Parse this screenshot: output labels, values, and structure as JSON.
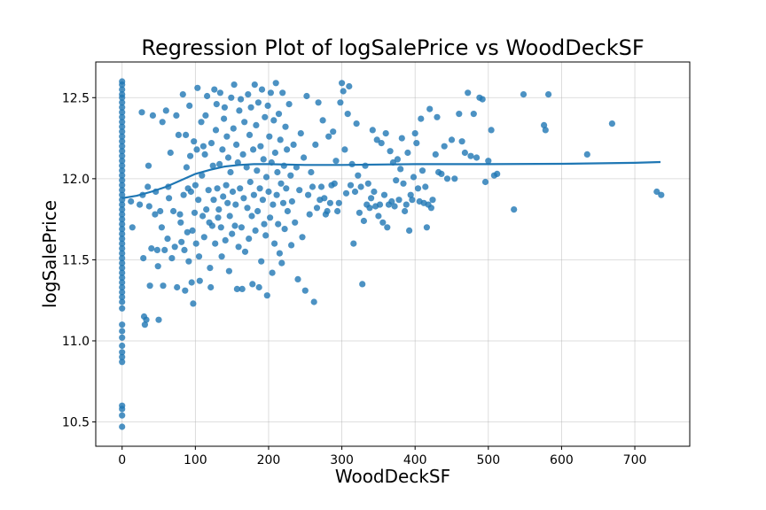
{
  "chart_data": {
    "type": "scatter",
    "title": "Regression Plot of logSalePrice vs WoodDeckSF",
    "xlabel": "WoodDeckSF",
    "ylabel": "logSalePrice",
    "xlim": [
      -36,
      775
    ],
    "ylim": [
      10.35,
      12.72
    ],
    "xticks": [
      0,
      100,
      200,
      300,
      400,
      500,
      600,
      700
    ],
    "yticks": [
      10.5,
      11.0,
      11.5,
      12.0,
      12.5
    ],
    "grid": true,
    "point_color": "#1f77b4",
    "line_color": "#1f77b4",
    "points": [
      [
        0,
        12.6
      ],
      [
        0,
        12.58
      ],
      [
        0,
        12.55
      ],
      [
        0,
        12.52
      ],
      [
        0,
        12.5
      ],
      [
        0,
        12.47
      ],
      [
        0,
        12.44
      ],
      [
        0,
        12.41
      ],
      [
        0,
        12.38
      ],
      [
        0,
        12.35
      ],
      [
        0,
        12.32
      ],
      [
        0,
        12.29
      ],
      [
        0,
        12.26
      ],
      [
        0,
        12.23
      ],
      [
        0,
        12.2
      ],
      [
        0,
        12.17
      ],
      [
        0,
        12.14
      ],
      [
        0,
        12.11
      ],
      [
        0,
        12.08
      ],
      [
        0,
        12.05
      ],
      [
        0,
        12.02
      ],
      [
        0,
        11.99
      ],
      [
        0,
        11.96
      ],
      [
        0,
        11.93
      ],
      [
        0,
        11.9
      ],
      [
        0,
        11.87
      ],
      [
        0,
        11.84
      ],
      [
        0,
        11.81
      ],
      [
        0,
        11.78
      ],
      [
        0,
        11.75
      ],
      [
        0,
        11.72
      ],
      [
        0,
        11.69
      ],
      [
        0,
        11.66
      ],
      [
        0,
        11.63
      ],
      [
        0,
        11.6
      ],
      [
        0,
        11.57
      ],
      [
        0,
        11.54
      ],
      [
        0,
        11.51
      ],
      [
        0,
        11.48
      ],
      [
        0,
        11.45
      ],
      [
        0,
        11.42
      ],
      [
        0,
        11.39
      ],
      [
        0,
        11.36
      ],
      [
        0,
        11.33
      ],
      [
        0,
        11.3
      ],
      [
        0,
        11.27
      ],
      [
        0,
        11.24
      ],
      [
        0,
        11.2
      ],
      [
        0,
        11.1
      ],
      [
        0,
        11.06
      ],
      [
        0,
        11.02
      ],
      [
        0,
        10.97
      ],
      [
        0,
        10.93
      ],
      [
        0,
        10.9
      ],
      [
        0,
        10.87
      ],
      [
        0,
        10.6
      ],
      [
        0,
        10.58
      ],
      [
        0,
        10.54
      ],
      [
        0,
        10.47
      ],
      [
        12,
        11.86
      ],
      [
        14,
        11.7
      ],
      [
        24,
        11.84
      ],
      [
        27,
        12.41
      ],
      [
        28,
        11.9
      ],
      [
        29,
        11.51
      ],
      [
        30,
        11.15
      ],
      [
        31,
        11.1
      ],
      [
        33,
        11.13
      ],
      [
        35,
        11.95
      ],
      [
        36,
        12.08
      ],
      [
        37,
        11.83
      ],
      [
        38,
        11.34
      ],
      [
        40,
        11.57
      ],
      [
        42,
        12.39
      ],
      [
        45,
        11.78
      ],
      [
        46,
        11.92
      ],
      [
        48,
        11.56
      ],
      [
        49,
        11.46
      ],
      [
        50,
        11.13
      ],
      [
        52,
        11.8
      ],
      [
        54,
        11.7
      ],
      [
        55,
        12.35
      ],
      [
        56,
        11.34
      ],
      [
        58,
        11.56
      ],
      [
        60,
        12.42
      ],
      [
        62,
        11.63
      ],
      [
        63,
        11.95
      ],
      [
        64,
        11.88
      ],
      [
        66,
        12.16
      ],
      [
        68,
        11.51
      ],
      [
        70,
        11.8
      ],
      [
        72,
        11.58
      ],
      [
        74,
        12.39
      ],
      [
        75,
        11.33
      ],
      [
        77,
        12.27
      ],
      [
        79,
        11.78
      ],
      [
        80,
        11.73
      ],
      [
        81,
        11.61
      ],
      [
        83,
        12.52
      ],
      [
        84,
        11.9
      ],
      [
        85,
        11.56
      ],
      [
        86,
        11.31
      ],
      [
        87,
        12.27
      ],
      [
        88,
        12.07
      ],
      [
        89,
        11.67
      ],
      [
        90,
        11.94
      ],
      [
        91,
        11.49
      ],
      [
        92,
        12.45
      ],
      [
        93,
        12.14
      ],
      [
        94,
        11.92
      ],
      [
        95,
        11.36
      ],
      [
        96,
        11.68
      ],
      [
        97,
        11.23
      ],
      [
        98,
        12.23
      ],
      [
        99,
        11.79
      ],
      [
        100,
        11.96
      ],
      [
        101,
        11.6
      ],
      [
        102,
        12.18
      ],
      [
        103,
        12.56
      ],
      [
        104,
        11.87
      ],
      [
        105,
        11.52
      ],
      [
        106,
        11.37
      ],
      [
        108,
        12.35
      ],
      [
        109,
        12.02
      ],
      [
        110,
        11.77
      ],
      [
        111,
        12.2
      ],
      [
        112,
        11.64
      ],
      [
        113,
        12.15
      ],
      [
        114,
        12.39
      ],
      [
        115,
        11.81
      ],
      [
        116,
        12.51
      ],
      [
        118,
        11.93
      ],
      [
        119,
        11.73
      ],
      [
        120,
        11.45
      ],
      [
        121,
        11.33
      ],
      [
        122,
        12.22
      ],
      [
        123,
        11.71
      ],
      [
        124,
        12.08
      ],
      [
        125,
        11.87
      ],
      [
        126,
        12.55
      ],
      [
        127,
        11.6
      ],
      [
        128,
        12.3
      ],
      [
        129,
        12.46
      ],
      [
        130,
        11.94
      ],
      [
        131,
        11.76
      ],
      [
        132,
        11.81
      ],
      [
        133,
        12.09
      ],
      [
        134,
        12.53
      ],
      [
        135,
        11.7
      ],
      [
        136,
        11.52
      ],
      [
        137,
        12.18
      ],
      [
        138,
        11.89
      ],
      [
        139,
        12.37
      ],
      [
        140,
        12.44
      ],
      [
        141,
        11.62
      ],
      [
        142,
        11.96
      ],
      [
        143,
        12.26
      ],
      [
        144,
        11.85
      ],
      [
        145,
        12.13
      ],
      [
        146,
        11.43
      ],
      [
        147,
        11.77
      ],
      [
        148,
        12.04
      ],
      [
        149,
        12.5
      ],
      [
        150,
        11.66
      ],
      [
        151,
        11.92
      ],
      [
        152,
        12.31
      ],
      [
        153,
        12.58
      ],
      [
        154,
        11.71
      ],
      [
        155,
        11.84
      ],
      [
        156,
        12.21
      ],
      [
        157,
        11.32
      ],
      [
        158,
        12.1
      ],
      [
        159,
        11.58
      ],
      [
        160,
        12.42
      ],
      [
        161,
        11.94
      ],
      [
        162,
        12.49
      ],
      [
        163,
        11.7
      ],
      [
        164,
        11.32
      ],
      [
        165,
        12.15
      ],
      [
        166,
        11.88
      ],
      [
        167,
        12.35
      ],
      [
        168,
        11.55
      ],
      [
        170,
        12.07
      ],
      [
        171,
        11.82
      ],
      [
        172,
        12.52
      ],
      [
        173,
        11.63
      ],
      [
        174,
        12.27
      ],
      [
        175,
        11.98
      ],
      [
        176,
        12.44
      ],
      [
        177,
        11.77
      ],
      [
        178,
        11.35
      ],
      [
        179,
        12.18
      ],
      [
        180,
        11.9
      ],
      [
        181,
        12.58
      ],
      [
        182,
        11.68
      ],
      [
        183,
        12.33
      ],
      [
        184,
        12.05
      ],
      [
        185,
        11.8
      ],
      [
        186,
        12.47
      ],
      [
        187,
        11.33
      ],
      [
        188,
        11.94
      ],
      [
        189,
        12.2
      ],
      [
        190,
        11.49
      ],
      [
        191,
        12.55
      ],
      [
        192,
        11.87
      ],
      [
        193,
        12.12
      ],
      [
        194,
        11.72
      ],
      [
        195,
        12.38
      ],
      [
        196,
        11.65
      ],
      [
        197,
        12.01
      ],
      [
        198,
        11.28
      ],
      [
        199,
        12.45
      ],
      [
        200,
        11.92
      ],
      [
        201,
        12.26
      ],
      [
        202,
        11.76
      ],
      [
        203,
        12.53
      ],
      [
        204,
        12.1
      ],
      [
        205,
        11.42
      ],
      [
        206,
        11.84
      ],
      [
        207,
        12.36
      ],
      [
        208,
        11.6
      ],
      [
        209,
        12.16
      ],
      [
        210,
        12.59
      ],
      [
        211,
        11.9
      ],
      [
        212,
        12.04
      ],
      [
        213,
        11.72
      ],
      [
        214,
        12.4
      ],
      [
        215,
        11.54
      ],
      [
        216,
        12.24
      ],
      [
        217,
        11.97
      ],
      [
        218,
        11.48
      ],
      [
        219,
        12.53
      ],
      [
        220,
        11.85
      ],
      [
        221,
        12.08
      ],
      [
        222,
        11.69
      ],
      [
        223,
        12.32
      ],
      [
        224,
        11.94
      ],
      [
        225,
        12.18
      ],
      [
        226,
        11.8
      ],
      [
        228,
        12.46
      ],
      [
        230,
        12.02
      ],
      [
        231,
        11.59
      ],
      [
        232,
        11.86
      ],
      [
        234,
        12.21
      ],
      [
        236,
        11.73
      ],
      [
        238,
        12.07
      ],
      [
        240,
        11.38
      ],
      [
        242,
        11.93
      ],
      [
        244,
        12.28
      ],
      [
        246,
        11.64
      ],
      [
        248,
        12.13
      ],
      [
        250,
        11.31
      ],
      [
        252,
        12.51
      ],
      [
        254,
        11.9
      ],
      [
        256,
        11.78
      ],
      [
        258,
        12.04
      ],
      [
        260,
        11.95
      ],
      [
        262,
        11.24
      ],
      [
        264,
        12.21
      ],
      [
        266,
        11.82
      ],
      [
        268,
        12.47
      ],
      [
        270,
        11.87
      ],
      [
        272,
        11.95
      ],
      [
        274,
        12.36
      ],
      [
        276,
        11.88
      ],
      [
        278,
        11.78
      ],
      [
        280,
        11.8
      ],
      [
        282,
        12.26
      ],
      [
        284,
        11.85
      ],
      [
        286,
        11.96
      ],
      [
        288,
        12.29
      ],
      [
        290,
        11.97
      ],
      [
        292,
        12.11
      ],
      [
        294,
        11.8
      ],
      [
        296,
        11.85
      ],
      [
        298,
        12.47
      ],
      [
        300,
        12.59
      ],
      [
        302,
        12.54
      ],
      [
        304,
        12.18
      ],
      [
        306,
        11.91
      ],
      [
        308,
        12.4
      ],
      [
        310,
        12.57
      ],
      [
        312,
        11.96
      ],
      [
        314,
        12.09
      ],
      [
        316,
        11.6
      ],
      [
        318,
        11.92
      ],
      [
        320,
        12.34
      ],
      [
        322,
        12.02
      ],
      [
        324,
        11.79
      ],
      [
        326,
        11.95
      ],
      [
        328,
        11.35
      ],
      [
        330,
        11.74
      ],
      [
        332,
        12.08
      ],
      [
        334,
        11.84
      ],
      [
        336,
        11.97
      ],
      [
        338,
        11.82
      ],
      [
        340,
        11.88
      ],
      [
        342,
        12.3
      ],
      [
        344,
        11.92
      ],
      [
        346,
        11.83
      ],
      [
        348,
        12.24
      ],
      [
        350,
        11.77
      ],
      [
        352,
        11.84
      ],
      [
        354,
        12.22
      ],
      [
        356,
        11.73
      ],
      [
        358,
        11.9
      ],
      [
        360,
        12.28
      ],
      [
        362,
        11.7
      ],
      [
        364,
        11.84
      ],
      [
        366,
        12.17
      ],
      [
        368,
        11.86
      ],
      [
        370,
        12.1
      ],
      [
        372,
        11.83
      ],
      [
        374,
        11.99
      ],
      [
        376,
        12.12
      ],
      [
        378,
        11.87
      ],
      [
        380,
        12.06
      ],
      [
        382,
        12.25
      ],
      [
        384,
        11.97
      ],
      [
        386,
        11.8
      ],
      [
        388,
        11.84
      ],
      [
        390,
        12.16
      ],
      [
        392,
        11.68
      ],
      [
        394,
        11.9
      ],
      [
        396,
        11.87
      ],
      [
        398,
        12.01
      ],
      [
        400,
        12.28
      ],
      [
        402,
        12.22
      ],
      [
        404,
        11.94
      ],
      [
        406,
        11.86
      ],
      [
        408,
        12.37
      ],
      [
        410,
        12.05
      ],
      [
        412,
        11.85
      ],
      [
        414,
        11.95
      ],
      [
        416,
        11.7
      ],
      [
        418,
        11.84
      ],
      [
        420,
        12.43
      ],
      [
        422,
        11.82
      ],
      [
        424,
        11.87
      ],
      [
        428,
        12.15
      ],
      [
        430,
        12.38
      ],
      [
        432,
        12.04
      ],
      [
        436,
        12.03
      ],
      [
        440,
        12.2
      ],
      [
        444,
        12.0
      ],
      [
        450,
        12.24
      ],
      [
        454,
        12.0
      ],
      [
        460,
        12.4
      ],
      [
        464,
        12.23
      ],
      [
        468,
        12.16
      ],
      [
        472,
        12.53
      ],
      [
        476,
        12.14
      ],
      [
        480,
        12.4
      ],
      [
        484,
        12.13
      ],
      [
        488,
        12.5
      ],
      [
        492,
        12.49
      ],
      [
        496,
        11.98
      ],
      [
        500,
        12.11
      ],
      [
        504,
        12.3
      ],
      [
        508,
        12.02
      ],
      [
        512,
        12.03
      ],
      [
        535,
        11.81
      ],
      [
        548,
        12.52
      ],
      [
        576,
        12.33
      ],
      [
        578,
        12.3
      ],
      [
        582,
        12.52
      ],
      [
        635,
        12.15
      ],
      [
        669,
        12.34
      ],
      [
        730,
        11.92
      ],
      [
        736,
        11.9
      ]
    ],
    "regression_line": {
      "x": [
        0,
        20,
        40,
        60,
        80,
        100,
        120,
        140,
        160,
        180,
        200,
        250,
        300,
        400,
        500,
        600,
        700,
        735
      ],
      "y": [
        11.88,
        11.895,
        11.92,
        11.95,
        11.99,
        12.03,
        12.055,
        12.075,
        12.085,
        12.09,
        12.09,
        12.085,
        12.085,
        12.09,
        12.09,
        12.092,
        12.098,
        12.103
      ]
    }
  }
}
